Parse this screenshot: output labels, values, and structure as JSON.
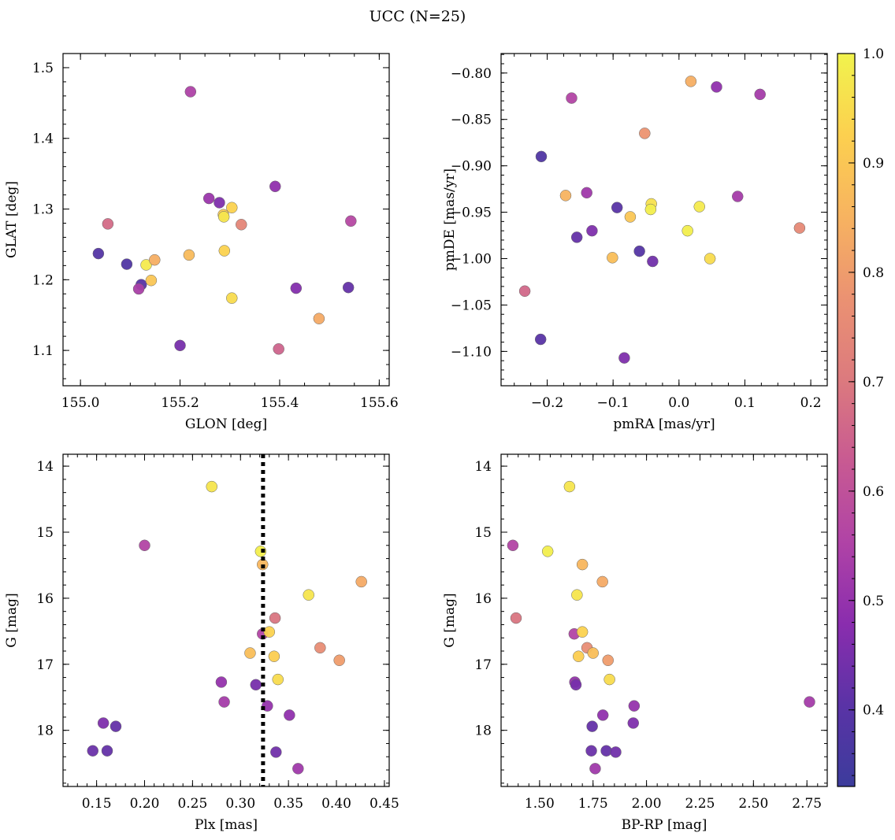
{
  "figure": {
    "title": "UCC (N=25)"
  },
  "colors": {
    "colormap": "plasma",
    "stops": [
      "#3c3c9c",
      "#5a33a6",
      "#8a2dae",
      "#b043a6",
      "#c85a92",
      "#dc7a7e",
      "#eb9272",
      "#f7b360",
      "#fcd04f",
      "#f1f34d"
    ],
    "ref_line": "#000000"
  },
  "chart_data": [
    {
      "type": "scatter",
      "name": "glon-glat",
      "xlabel": "GLON [deg]",
      "ylabel": "GLAT [deg]",
      "xlim": [
        154.965,
        155.62
      ],
      "ylim": [
        1.05,
        1.52
      ],
      "xticks": [
        155.0,
        155.2,
        155.4,
        155.6
      ],
      "xtick_labels": [
        "155.0",
        "155.2",
        "155.4",
        "155.6"
      ],
      "yticks": [
        1.1,
        1.2,
        1.3,
        1.4,
        1.5
      ],
      "ytick_labels": [
        "1.1",
        "1.2",
        "1.3",
        "1.4",
        "1.5"
      ],
      "xminor": 0.05,
      "yminor": 0.02,
      "invert_y": false,
      "points": [
        {
          "x": 155.036,
          "y": 1.237,
          "c": 0.39
        },
        {
          "x": 155.093,
          "y": 1.222,
          "c": 0.38
        },
        {
          "x": 155.055,
          "y": 1.279,
          "c": 0.67
        },
        {
          "x": 155.122,
          "y": 1.193,
          "c": 0.4
        },
        {
          "x": 155.117,
          "y": 1.187,
          "c": 0.54
        },
        {
          "x": 155.132,
          "y": 1.221,
          "c": 0.98
        },
        {
          "x": 155.142,
          "y": 1.199,
          "c": 0.9
        },
        {
          "x": 155.149,
          "y": 1.228,
          "c": 0.84
        },
        {
          "x": 155.221,
          "y": 1.466,
          "c": 0.55
        },
        {
          "x": 155.218,
          "y": 1.235,
          "c": 0.87
        },
        {
          "x": 155.2,
          "y": 1.107,
          "c": 0.45
        },
        {
          "x": 155.258,
          "y": 1.315,
          "c": 0.51
        },
        {
          "x": 155.279,
          "y": 1.309,
          "c": 0.46
        },
        {
          "x": 155.287,
          "y": 1.292,
          "c": 0.91
        },
        {
          "x": 155.288,
          "y": 1.289,
          "c": 0.97
        },
        {
          "x": 155.289,
          "y": 1.241,
          "c": 0.93
        },
        {
          "x": 155.304,
          "y": 1.302,
          "c": 0.93
        },
        {
          "x": 155.304,
          "y": 1.174,
          "c": 0.95
        },
        {
          "x": 155.323,
          "y": 1.278,
          "c": 0.74
        },
        {
          "x": 155.391,
          "y": 1.332,
          "c": 0.49
        },
        {
          "x": 155.398,
          "y": 1.102,
          "c": 0.65
        },
        {
          "x": 155.433,
          "y": 1.188,
          "c": 0.47
        },
        {
          "x": 155.479,
          "y": 1.145,
          "c": 0.83
        },
        {
          "x": 155.538,
          "y": 1.189,
          "c": 0.42
        },
        {
          "x": 155.543,
          "y": 1.283,
          "c": 0.57
        }
      ]
    },
    {
      "type": "scatter",
      "name": "pmra-pmde",
      "xlabel": "pmRA [mas/yr]",
      "ylabel": "pmDE [mas/yr]",
      "xlim": [
        -0.27,
        0.225
      ],
      "ylim": [
        -1.137,
        -0.779
      ],
      "xticks": [
        -0.2,
        -0.1,
        0.0,
        0.1,
        0.2
      ],
      "xtick_labels": [
        "−0.2",
        "−0.1",
        "0.0",
        "0.1",
        "0.2"
      ],
      "yticks": [
        -1.1,
        -1.05,
        -1.0,
        -0.95,
        -0.9,
        -0.85,
        -0.8
      ],
      "ytick_labels": [
        "−1.10",
        "−1.05",
        "−1.00",
        "−0.95",
        "−0.90",
        "−0.85",
        "−0.80"
      ],
      "xminor": 0.025,
      "yminor": 0.01,
      "invert_y": false,
      "points": [
        {
          "x": -0.163,
          "y": -0.827,
          "c": 0.56
        },
        {
          "x": 0.018,
          "y": -0.809,
          "c": 0.84
        },
        {
          "x": 0.057,
          "y": -0.815,
          "c": 0.49
        },
        {
          "x": 0.123,
          "y": -0.823,
          "c": 0.53
        },
        {
          "x": -0.052,
          "y": -0.865,
          "c": 0.78
        },
        {
          "x": -0.209,
          "y": -0.89,
          "c": 0.38
        },
        {
          "x": -0.172,
          "y": -0.932,
          "c": 0.85
        },
        {
          "x": -0.14,
          "y": -0.929,
          "c": 0.52
        },
        {
          "x": 0.089,
          "y": -0.933,
          "c": 0.53
        },
        {
          "x": -0.094,
          "y": -0.945,
          "c": 0.4
        },
        {
          "x": -0.074,
          "y": -0.955,
          "c": 0.9
        },
        {
          "x": -0.042,
          "y": -0.941,
          "c": 0.96
        },
        {
          "x": -0.043,
          "y": -0.947,
          "c": 0.99
        },
        {
          "x": 0.031,
          "y": -0.944,
          "c": 0.98
        },
        {
          "x": 0.013,
          "y": -0.97,
          "c": 0.99
        },
        {
          "x": -0.132,
          "y": -0.97,
          "c": 0.46
        },
        {
          "x": -0.155,
          "y": -0.977,
          "c": 0.42
        },
        {
          "x": 0.183,
          "y": -0.967,
          "c": 0.75
        },
        {
          "x": -0.06,
          "y": -0.992,
          "c": 0.39
        },
        {
          "x": -0.101,
          "y": -0.999,
          "c": 0.88
        },
        {
          "x": -0.04,
          "y": -1.003,
          "c": 0.44
        },
        {
          "x": 0.047,
          "y": -1.0,
          "c": 0.95
        },
        {
          "x": -0.234,
          "y": -1.035,
          "c": 0.66
        },
        {
          "x": -0.21,
          "y": -1.087,
          "c": 0.4
        },
        {
          "x": -0.083,
          "y": -1.107,
          "c": 0.46
        }
      ]
    },
    {
      "type": "scatter",
      "name": "plx-g",
      "xlabel": "Plx [mas]",
      "ylabel": "G [mag]",
      "xlim": [
        0.115,
        0.455
      ],
      "ylim": [
        13.82,
        18.85
      ],
      "xticks": [
        0.15,
        0.2,
        0.25,
        0.3,
        0.35,
        0.4,
        0.45
      ],
      "xtick_labels": [
        "0.15",
        "0.20",
        "0.25",
        "0.30",
        "0.35",
        "0.40",
        "0.45"
      ],
      "yticks": [
        14,
        15,
        16,
        17,
        18
      ],
      "ytick_labels": [
        "14",
        "15",
        "16",
        "17",
        "18"
      ],
      "xminor": 0.01,
      "yminor": 0.2,
      "invert_y": true,
      "vline": 0.3235,
      "points": [
        {
          "x": 0.27,
          "y": 14.31,
          "c": 0.97
        },
        {
          "x": 0.2,
          "y": 15.2,
          "c": 0.56
        },
        {
          "x": 0.321,
          "y": 15.29,
          "c": 0.99
        },
        {
          "x": 0.323,
          "y": 15.49,
          "c": 0.86
        },
        {
          "x": 0.426,
          "y": 15.75,
          "c": 0.83
        },
        {
          "x": 0.371,
          "y": 15.95,
          "c": 0.97
        },
        {
          "x": 0.336,
          "y": 16.3,
          "c": 0.69
        },
        {
          "x": 0.323,
          "y": 16.54,
          "c": 0.56
        },
        {
          "x": 0.33,
          "y": 16.51,
          "c": 0.93
        },
        {
          "x": 0.383,
          "y": 16.75,
          "c": 0.76
        },
        {
          "x": 0.31,
          "y": 16.83,
          "c": 0.88
        },
        {
          "x": 0.335,
          "y": 16.88,
          "c": 0.92
        },
        {
          "x": 0.403,
          "y": 16.94,
          "c": 0.8
        },
        {
          "x": 0.339,
          "y": 17.23,
          "c": 0.95
        },
        {
          "x": 0.28,
          "y": 17.27,
          "c": 0.5
        },
        {
          "x": 0.316,
          "y": 17.31,
          "c": 0.45
        },
        {
          "x": 0.283,
          "y": 17.57,
          "c": 0.53
        },
        {
          "x": 0.328,
          "y": 17.63,
          "c": 0.5
        },
        {
          "x": 0.351,
          "y": 17.77,
          "c": 0.49
        },
        {
          "x": 0.157,
          "y": 17.89,
          "c": 0.46
        },
        {
          "x": 0.17,
          "y": 17.94,
          "c": 0.42
        },
        {
          "x": 0.146,
          "y": 18.31,
          "c": 0.43
        },
        {
          "x": 0.161,
          "y": 18.31,
          "c": 0.42
        },
        {
          "x": 0.337,
          "y": 18.33,
          "c": 0.44
        },
        {
          "x": 0.36,
          "y": 18.58,
          "c": 0.52
        }
      ]
    },
    {
      "type": "scatter",
      "name": "bprp-g",
      "xlabel": "BP-RP [mag]",
      "ylabel": "G [mag]",
      "xlim": [
        1.32,
        2.845
      ],
      "ylim": [
        13.82,
        18.85
      ],
      "xticks": [
        1.5,
        1.75,
        2.0,
        2.25,
        2.5,
        2.75
      ],
      "xtick_labels": [
        "1.50",
        "1.75",
        "2.00",
        "2.25",
        "2.50",
        "2.75"
      ],
      "yticks": [
        14,
        15,
        16,
        17,
        18
      ],
      "ytick_labels": [
        "14",
        "15",
        "16",
        "17",
        "18"
      ],
      "xminor": 0.05,
      "yminor": 0.2,
      "invert_y": true,
      "points": [
        {
          "x": 1.64,
          "y": 14.31,
          "c": 0.97
        },
        {
          "x": 1.375,
          "y": 15.2,
          "c": 0.56
        },
        {
          "x": 1.538,
          "y": 15.29,
          "c": 0.99
        },
        {
          "x": 1.7,
          "y": 15.49,
          "c": 0.86
        },
        {
          "x": 1.794,
          "y": 15.75,
          "c": 0.83
        },
        {
          "x": 1.675,
          "y": 15.95,
          "c": 0.97
        },
        {
          "x": 1.39,
          "y": 16.3,
          "c": 0.69
        },
        {
          "x": 1.662,
          "y": 16.54,
          "c": 0.56
        },
        {
          "x": 1.7,
          "y": 16.51,
          "c": 0.93
        },
        {
          "x": 1.722,
          "y": 16.75,
          "c": 0.76
        },
        {
          "x": 1.75,
          "y": 16.83,
          "c": 0.88
        },
        {
          "x": 1.682,
          "y": 16.88,
          "c": 0.92
        },
        {
          "x": 1.82,
          "y": 16.94,
          "c": 0.8
        },
        {
          "x": 1.827,
          "y": 17.23,
          "c": 0.95
        },
        {
          "x": 1.665,
          "y": 17.27,
          "c": 0.5
        },
        {
          "x": 1.67,
          "y": 17.31,
          "c": 0.45
        },
        {
          "x": 2.762,
          "y": 17.57,
          "c": 0.53
        },
        {
          "x": 1.942,
          "y": 17.63,
          "c": 0.5
        },
        {
          "x": 1.796,
          "y": 17.77,
          "c": 0.49
        },
        {
          "x": 1.938,
          "y": 17.89,
          "c": 0.46
        },
        {
          "x": 1.746,
          "y": 17.94,
          "c": 0.42
        },
        {
          "x": 1.742,
          "y": 18.31,
          "c": 0.43
        },
        {
          "x": 1.812,
          "y": 18.31,
          "c": 0.42
        },
        {
          "x": 1.856,
          "y": 18.33,
          "c": 0.44
        },
        {
          "x": 1.76,
          "y": 18.58,
          "c": 0.52
        }
      ]
    }
  ],
  "colorbar": {
    "vmin": 0.33,
    "vmax": 1.0,
    "ticks": [
      0.4,
      0.5,
      0.6,
      0.7,
      0.8,
      0.9,
      1.0
    ],
    "tick_labels": [
      "0.4",
      "0.5",
      "0.6",
      "0.7",
      "0.8",
      "0.9",
      "1.0"
    ],
    "minor": 0.02
  }
}
